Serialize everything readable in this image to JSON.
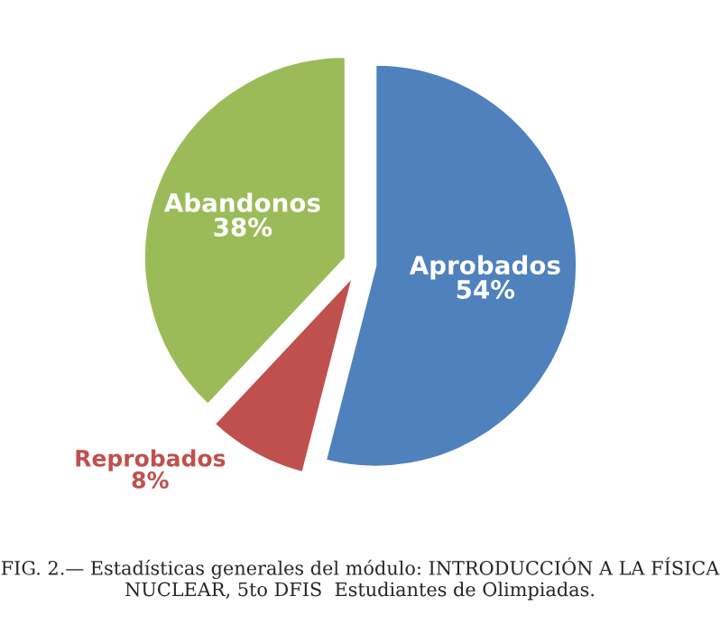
{
  "chart_data": {
    "type": "pie",
    "categories": [
      "Abandonos",
      "Reprobados",
      "Aprobados"
    ],
    "values": [
      38,
      8,
      54
    ],
    "value_labels": [
      "38%",
      "8%",
      "54%"
    ],
    "colors": [
      "#9bbb59",
      "#c0504d",
      "#4f81bd"
    ],
    "annotations": [
      "FIG. 2.— Estadísticas generales del módulo: INTRODUCCIÓN A LA FÍSICA NUCLEAR, 5to DFIS  Estudiantes de Olimpiadas."
    ]
  }
}
